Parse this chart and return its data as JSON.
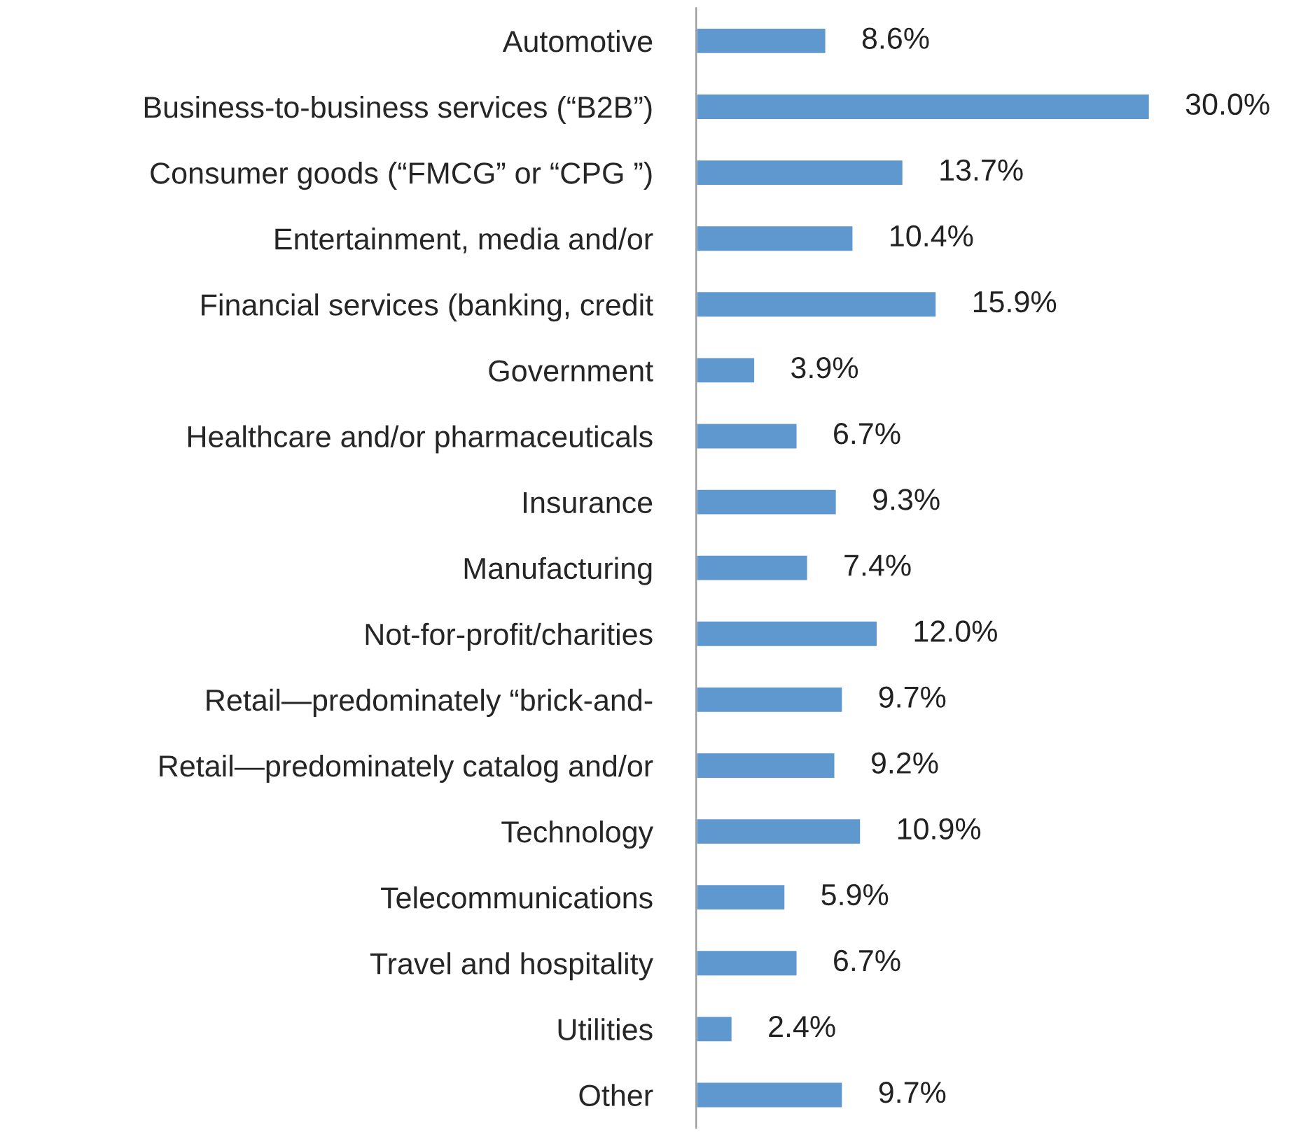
{
  "chart_data": {
    "type": "bar",
    "orientation": "horizontal",
    "color": "#5f97cf",
    "categories": [
      "Automotive",
      "Business-to-business services (“B2B”)",
      "Consumer goods (“FMCG” or “CPG ”)",
      "Entertainment, media and/or",
      "Financial services (banking, credit",
      "Government",
      "Healthcare and/or pharmaceuticals",
      "Insurance",
      "Manufacturing",
      "Not-for-profit/charities",
      "Retail—predominately “brick-and-",
      "Retail—predominately catalog and/or",
      "Technology",
      "Telecommunications",
      "Travel and hospitality",
      "Utilities",
      "Other"
    ],
    "values": [
      8.6,
      30.0,
      13.7,
      10.4,
      15.9,
      3.9,
      6.7,
      9.3,
      7.4,
      12.0,
      9.7,
      9.2,
      10.9,
      5.9,
      6.7,
      2.4,
      9.7
    ],
    "value_labels": [
      "8.6%",
      "30.0%",
      "13.7%",
      "10.4%",
      "15.9%",
      "3.9%",
      "6.7%",
      "9.3%",
      "7.4%",
      "12.0%",
      "9.7%",
      "9.2%",
      "10.9%",
      "5.9%",
      "6.7%",
      "2.4%",
      "9.7%"
    ],
    "tick_labels": "y",
    "grid": false,
    "legend": false
  }
}
